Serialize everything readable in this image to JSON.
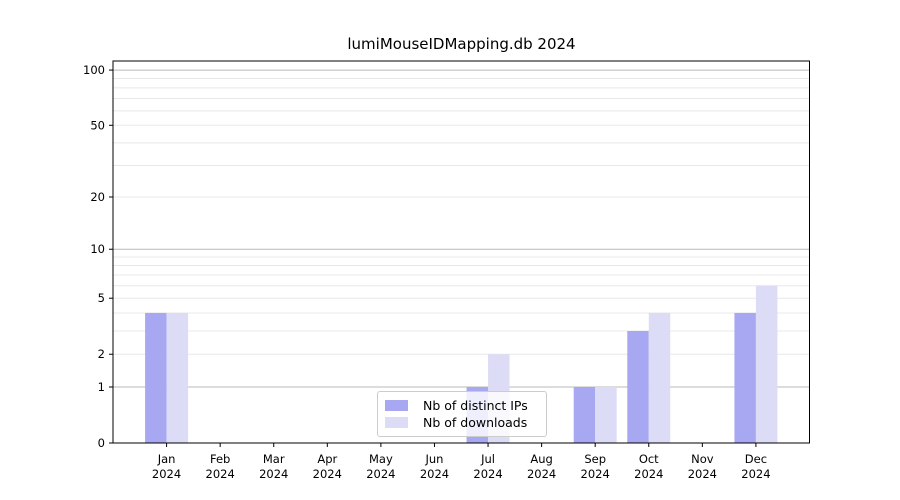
{
  "chart_data": {
    "type": "bar",
    "title": "lumiMouseIDMapping.db 2024",
    "categories": [
      "Jan",
      "Feb",
      "Mar",
      "Apr",
      "May",
      "Jun",
      "Jul",
      "Aug",
      "Sep",
      "Oct",
      "Nov",
      "Dec"
    ],
    "x_tick_year": "2024",
    "series": [
      {
        "name": "Nb of distinct IPs",
        "color": "#a8a8f2",
        "values": [
          4,
          0,
          0,
          0,
          0,
          0,
          1,
          0,
          1,
          3,
          0,
          4
        ]
      },
      {
        "name": "Nb of downloads",
        "color": "#dcdcf6",
        "values": [
          4,
          0,
          0,
          0,
          0,
          0,
          2,
          0,
          1,
          4,
          0,
          6
        ]
      }
    ],
    "y_axis": {
      "scale": "log1p",
      "tick_values": [
        0,
        1,
        2,
        5,
        10,
        20,
        50,
        100
      ],
      "major_grid_values": [
        1,
        10,
        100
      ],
      "minor_grid_values": [
        2,
        3,
        4,
        5,
        6,
        7,
        8,
        9,
        20,
        30,
        40,
        50,
        60,
        70,
        80,
        90
      ],
      "ylim": [
        0,
        112
      ]
    },
    "xlabel": "",
    "ylabel": "",
    "grid": true,
    "legend": {
      "position": "lower center",
      "entries": [
        "Nb of distinct IPs",
        "Nb of downloads"
      ]
    }
  },
  "colors": {
    "background": "#ffffff",
    "bar_distinct_ips": "#a8a8f2",
    "bar_downloads": "#dcdcf6",
    "grid_major": "#b9b9b9",
    "grid_minor": "#e8e8e8",
    "axis": "#000000",
    "legend_border": "#cccccc"
  }
}
